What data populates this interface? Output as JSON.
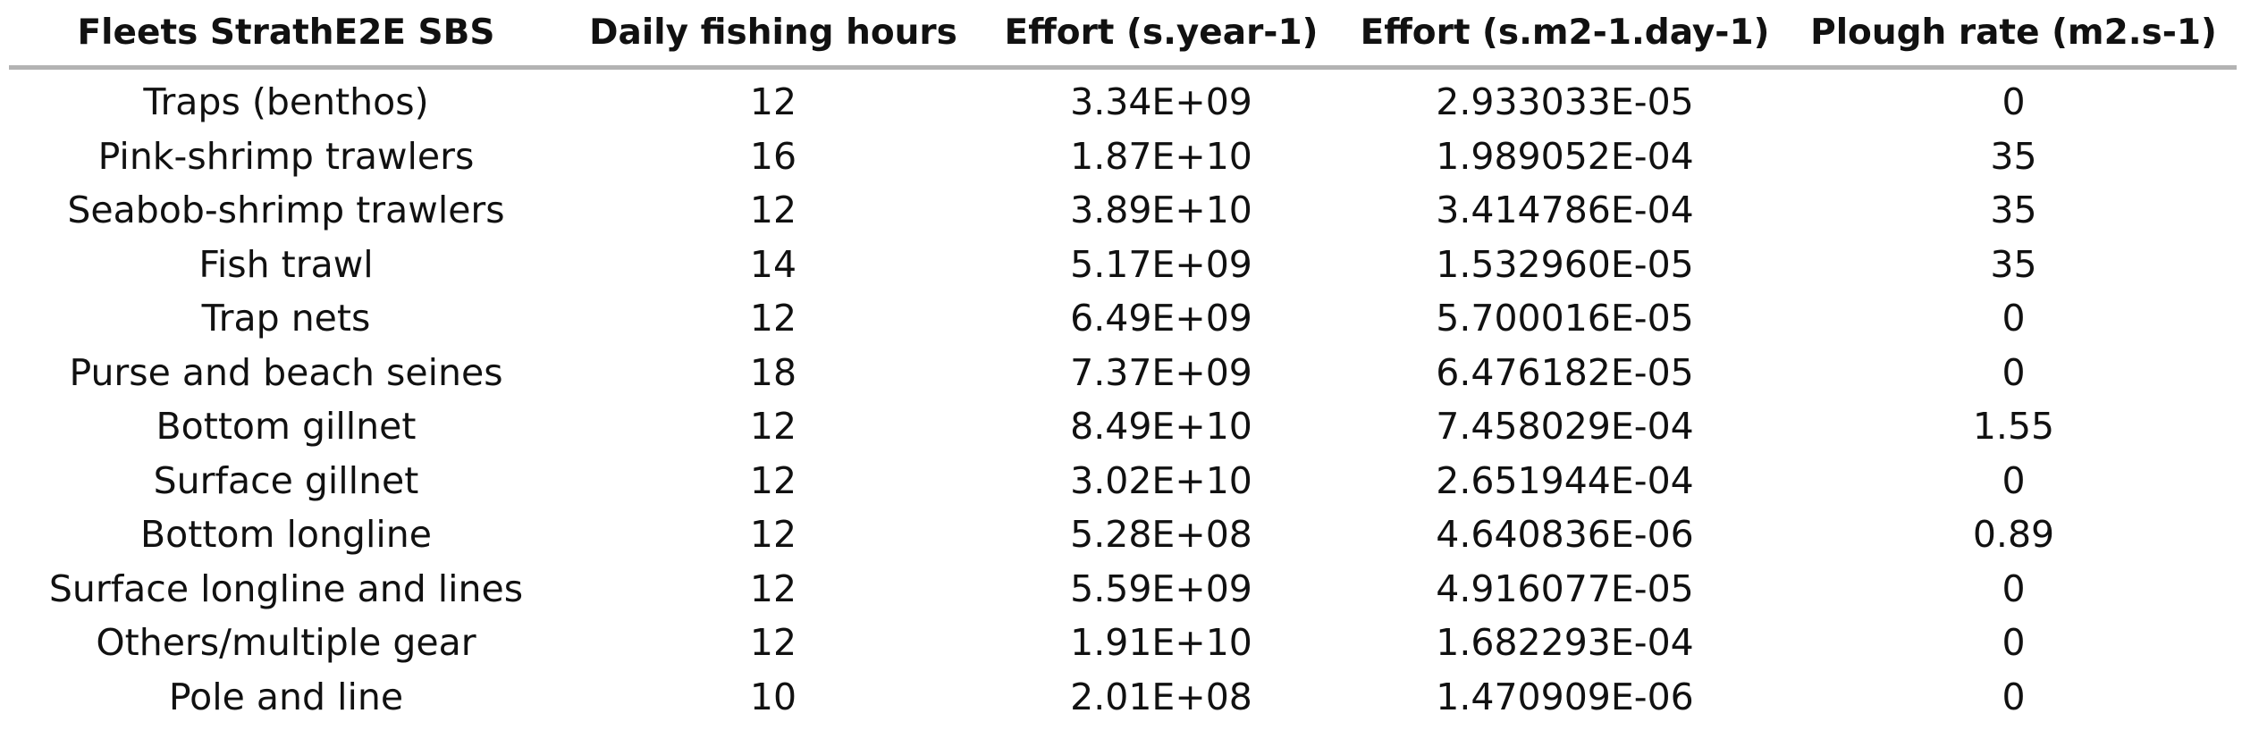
{
  "table": {
    "headers": [
      "Fleets StrathE2E SBS",
      "Daily fishing hours",
      "Effort (s.year-1)",
      "Effort (s.m2-1.day-1)",
      "Plough rate (m2.s-1)"
    ],
    "rows": [
      [
        "Traps (benthos)",
        "12",
        "3.34E+09",
        "2.933033E-05",
        "0"
      ],
      [
        "Pink-shrimp trawlers",
        "16",
        "1.87E+10",
        "1.989052E-04",
        "35"
      ],
      [
        "Seabob-shrimp trawlers",
        "12",
        "3.89E+10",
        "3.414786E-04",
        "35"
      ],
      [
        "Fish trawl",
        "14",
        "5.17E+09",
        "1.532960E-05",
        "35"
      ],
      [
        "Trap nets",
        "12",
        "6.49E+09",
        "5.700016E-05",
        "0"
      ],
      [
        "Purse and beach seines",
        "18",
        "7.37E+09",
        "6.476182E-05",
        "0"
      ],
      [
        "Bottom gillnet",
        "12",
        "8.49E+10",
        "7.458029E-04",
        "1.55"
      ],
      [
        "Surface gillnet",
        "12",
        "3.02E+10",
        "2.651944E-04",
        "0"
      ],
      [
        "Bottom longline",
        "12",
        "5.28E+08",
        "4.640836E-06",
        "0.89"
      ],
      [
        "Surface longline and lines",
        "12",
        "5.59E+09",
        "4.916077E-05",
        "0"
      ],
      [
        "Others/multiple gear",
        "12",
        "1.91E+10",
        "1.682293E-04",
        "0"
      ],
      [
        "Pole and line",
        "10",
        "2.01E+08",
        "1.470909E-06",
        "0"
      ]
    ]
  }
}
